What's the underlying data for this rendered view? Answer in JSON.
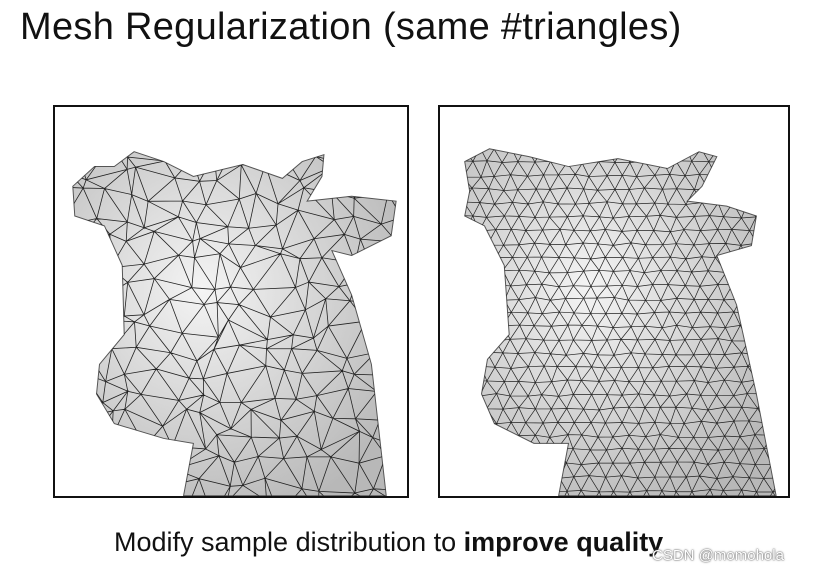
{
  "title": "Mesh Regularization (same #triangles)",
  "caption": {
    "prefix": "Modify sample distribution to ",
    "emphasis": "improve quality"
  },
  "watermark": "CSDN @momohola",
  "panels": [
    {
      "name": "original-mesh",
      "mesh": "irregular"
    },
    {
      "name": "regularized-mesh",
      "mesh": "regular"
    }
  ]
}
